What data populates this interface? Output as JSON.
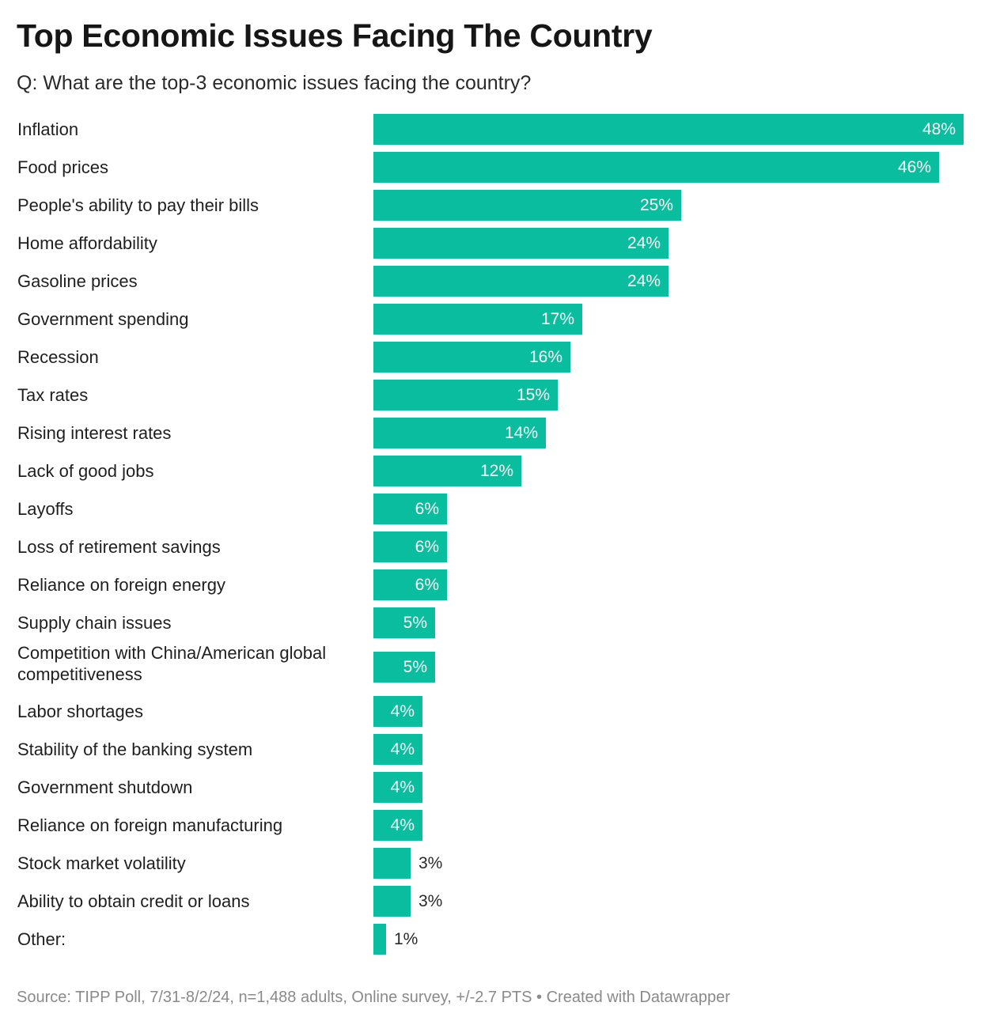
{
  "chart_data": {
    "type": "bar",
    "orientation": "horizontal",
    "title": "Top Economic Issues Facing The Country",
    "subtitle": "Q: What are the top-3 economic issues facing the country?",
    "categories": [
      "Inflation",
      "Food prices",
      "People's ability to pay their bills",
      "Home affordability",
      "Gasoline prices",
      "Government spending",
      "Recession",
      "Tax rates",
      "Rising interest rates",
      "Lack of good jobs",
      "Layoffs",
      "Loss of retirement savings",
      "Reliance on foreign energy",
      "Supply chain issues",
      "Competition with China/American global competitiveness",
      "Labor shortages",
      "Stability of the banking system",
      "Government shutdown",
      "Reliance on foreign manufacturing",
      "Stock market volatility",
      "Ability to obtain credit or loans",
      "Other:"
    ],
    "values": [
      48,
      46,
      25,
      24,
      24,
      17,
      16,
      15,
      14,
      12,
      6,
      6,
      6,
      5,
      5,
      4,
      4,
      4,
      4,
      3,
      3,
      1
    ],
    "value_suffix": "%",
    "xlim": [
      0,
      48
    ],
    "bar_color": "#0abd9f",
    "grid": false,
    "source": "Source: TIPP Poll, 7/31-8/2/24, n=1,488 adults, Online survey, +/-2.7 PTS • Created with Datawrapper"
  }
}
